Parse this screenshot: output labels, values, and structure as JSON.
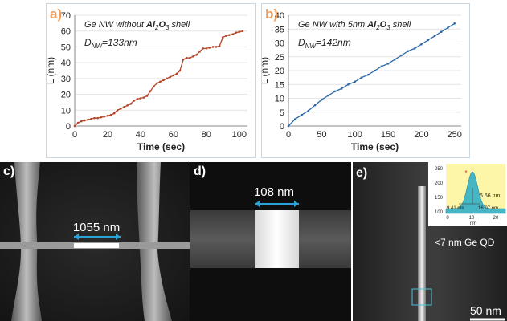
{
  "chart_data": [
    {
      "type": "line",
      "panel_label": "a)",
      "annotation_title": "Ge NW without Al2O3 shell",
      "annotation_title_parts": {
        "prefix": "Ge NW without ",
        "compound": "Al",
        "sub1": "2",
        "mid": "O",
        "sub2": "3",
        "suffix": " shell"
      },
      "annotation_diameter": "D_NW=133nm",
      "annotation_diameter_parts": {
        "var": "D",
        "sub": "NW",
        "value": "=133nm"
      },
      "xlabel": "Time (sec)",
      "ylabel": "L (nm)",
      "xlim": [
        0,
        105
      ],
      "ylim": [
        0,
        70
      ],
      "xticks": [
        "0",
        "20",
        "40",
        "60",
        "80",
        "100"
      ],
      "yticks": [
        "0",
        "10",
        "20",
        "30",
        "40",
        "50",
        "60",
        "70"
      ],
      "series_color": "#b5452a",
      "x": [
        0,
        2,
        4,
        6,
        8,
        10,
        12,
        14,
        16,
        18,
        20,
        22,
        24,
        26,
        28,
        30,
        32,
        34,
        36,
        38,
        40,
        42,
        44,
        46,
        48,
        50,
        52,
        54,
        56,
        58,
        60,
        62,
        64,
        66,
        68,
        70,
        72,
        74,
        76,
        78,
        80,
        82,
        84,
        86,
        88,
        90,
        92,
        94,
        96,
        98,
        100,
        102
      ],
      "y": [
        0,
        2,
        3,
        3.5,
        4,
        4.5,
        5,
        5,
        5.5,
        6,
        6.5,
        7,
        8,
        10,
        11,
        12,
        13,
        14,
        16,
        17,
        17.5,
        18,
        19,
        22,
        25,
        27,
        28,
        29,
        30,
        31,
        32,
        33,
        35,
        42,
        43,
        43,
        44,
        45,
        47,
        49,
        49,
        49.5,
        50,
        50,
        50.5,
        56,
        57,
        57.5,
        58,
        59,
        59.5,
        60
      ]
    },
    {
      "type": "line",
      "panel_label": "b)",
      "annotation_title": "Ge NW with 5nm Al2O3 shell",
      "annotation_title_parts": {
        "prefix": "Ge NW with 5nm ",
        "compound": "Al",
        "sub1": "2",
        "mid": "O",
        "sub2": "3",
        "suffix": " shell"
      },
      "annotation_diameter": "D_NW=142nm",
      "annotation_diameter_parts": {
        "var": "D",
        "sub": "NW",
        "value": "=142nm"
      },
      "xlabel": "Time (sec)",
      "ylabel": "L (nm)",
      "xlim": [
        0,
        260
      ],
      "ylim": [
        0,
        40
      ],
      "xticks": [
        "0",
        "50",
        "100",
        "150",
        "200",
        "250"
      ],
      "yticks": [
        "0",
        "5",
        "10",
        "15",
        "20",
        "25",
        "30",
        "35",
        "40"
      ],
      "series_color": "#2e6aa8",
      "x": [
        0,
        10,
        20,
        30,
        40,
        50,
        60,
        70,
        80,
        90,
        100,
        110,
        120,
        130,
        140,
        150,
        160,
        170,
        180,
        190,
        200,
        210,
        220,
        230,
        240,
        250
      ],
      "y": [
        0,
        2.5,
        4,
        5.5,
        7.5,
        9.5,
        11,
        12.5,
        13.5,
        15,
        16,
        17.5,
        18.5,
        20,
        21.5,
        22.5,
        24,
        25.5,
        27,
        28,
        29.5,
        31,
        32.5,
        34,
        35.5,
        37
      ]
    }
  ],
  "micrographs": {
    "c": {
      "label": "c)",
      "scale_text": "1055 nm"
    },
    "d": {
      "label": "d)",
      "scale_text": "108 nm"
    },
    "e": {
      "label": "e)",
      "qd_text": "<7 nm Ge QD",
      "scalebar_text": "50 nm",
      "inset": {
        "yticks": [
          "100",
          "150",
          "200",
          "250"
        ],
        "xticks": [
          "0",
          "10",
          "20"
        ],
        "xlabel": "nm",
        "ann_fwhm": "6.66 nm",
        "ann_left": "9.41 nm",
        "ann_right": "16.07 nm",
        "fill_color": "#46b5c4",
        "bg_color": "#fdf6a8"
      }
    }
  },
  "colors": {
    "label_a": "#f0a060",
    "label_b": "#f0a060",
    "arrow": "#2aa3d6"
  }
}
